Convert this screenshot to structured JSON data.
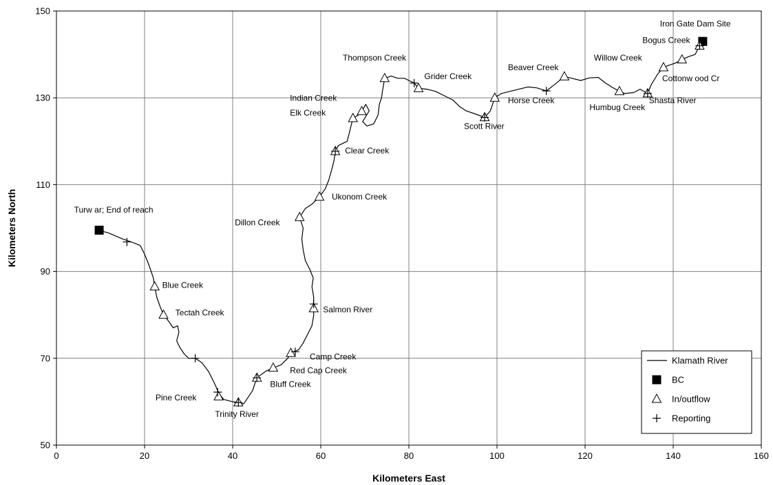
{
  "chart_data": {
    "type": "scatter",
    "title": "",
    "xlabel": "Kilometers East",
    "ylabel": "Kilometers North",
    "xlim": [
      0,
      160
    ],
    "ylim": [
      50,
      150
    ],
    "x_ticks": [
      0,
      20,
      40,
      60,
      80,
      100,
      120,
      140,
      160
    ],
    "y_ticks": [
      50,
      70,
      90,
      110,
      130,
      150
    ],
    "x_tick_labels": [
      "0",
      "20",
      "40",
      "60",
      "80",
      "100",
      "120",
      "140",
      "160"
    ],
    "y_tick_labels": [
      "50",
      "70",
      "90",
      "110",
      "130",
      "150"
    ],
    "grid": true,
    "legend_position": "bottom-right",
    "legend": [
      "Klamath River",
      "BC",
      "In/outflow",
      "Reporting"
    ],
    "colors": {
      "line": "#000000",
      "grid": "#7f7f7f",
      "markers": "#000000"
    },
    "series": [
      {
        "name": "Klamath River",
        "type": "line",
        "points": [
          [
            9.7,
            99.5
          ],
          [
            12,
            98.8
          ],
          [
            15,
            97.5
          ],
          [
            17,
            96.8
          ],
          [
            19,
            96
          ],
          [
            20,
            94
          ],
          [
            20.8,
            92
          ],
          [
            21.5,
            90
          ],
          [
            22,
            88.5
          ],
          [
            22.3,
            86.5
          ],
          [
            22.8,
            84
          ],
          [
            23.5,
            82
          ],
          [
            24.3,
            80
          ],
          [
            25.5,
            78.5
          ],
          [
            26.5,
            77
          ],
          [
            27.5,
            77.5
          ],
          [
            27.8,
            76
          ],
          [
            27.3,
            74
          ],
          [
            28,
            72.5
          ],
          [
            29,
            71
          ],
          [
            30,
            70
          ],
          [
            31.5,
            70
          ],
          [
            33,
            69
          ],
          [
            34.5,
            67
          ],
          [
            35.5,
            65
          ],
          [
            36.2,
            63.5
          ],
          [
            36.8,
            62
          ],
          [
            38,
            60.5
          ],
          [
            40,
            60
          ],
          [
            41.3,
            59.8
          ],
          [
            42.5,
            59.5
          ],
          [
            43.5,
            61
          ],
          [
            44.5,
            62.5
          ],
          [
            45.5,
            65.5
          ],
          [
            47.5,
            67
          ],
          [
            49.2,
            67.8
          ],
          [
            51,
            68.5
          ],
          [
            52.5,
            70
          ],
          [
            53.2,
            71.2
          ],
          [
            55,
            72
          ],
          [
            56,
            73.5
          ],
          [
            57,
            75.5
          ],
          [
            58,
            77.5
          ],
          [
            58.4,
            80
          ],
          [
            58.3,
            82
          ],
          [
            58.4,
            84
          ],
          [
            58,
            86.5
          ],
          [
            58.3,
            88.5
          ],
          [
            57.5,
            90.5
          ],
          [
            56.5,
            92.5
          ],
          [
            56,
            95
          ],
          [
            55.7,
            97.5
          ],
          [
            56,
            100
          ],
          [
            55.2,
            102.5
          ],
          [
            56.5,
            104.5
          ],
          [
            58,
            105.5
          ],
          [
            59.7,
            107.2
          ],
          [
            61,
            109
          ],
          [
            61.8,
            111
          ],
          [
            62.5,
            113.5
          ],
          [
            63,
            115.5
          ],
          [
            63.3,
            117.7
          ],
          [
            64,
            119
          ],
          [
            66,
            120
          ],
          [
            66.5,
            122
          ],
          [
            67.3,
            125.3
          ],
          [
            68.5,
            126
          ],
          [
            69.3,
            126.9
          ],
          [
            70.2,
            128.5
          ],
          [
            71,
            127
          ],
          [
            69.5,
            124.5
          ],
          [
            70.5,
            123.5
          ],
          [
            72,
            124
          ],
          [
            73,
            126
          ],
          [
            73.3,
            128.5
          ],
          [
            73.8,
            130
          ],
          [
            74,
            131.5
          ],
          [
            74.5,
            134.5
          ],
          [
            76,
            135
          ],
          [
            77.5,
            134.5
          ],
          [
            79,
            134.5
          ],
          [
            80,
            134
          ],
          [
            81.2,
            133.4
          ],
          [
            82.2,
            132.2
          ],
          [
            84,
            132
          ],
          [
            86,
            131.5
          ],
          [
            88,
            130.5
          ],
          [
            90,
            129.5
          ],
          [
            91.5,
            128
          ],
          [
            93,
            127
          ],
          [
            95,
            126.3
          ],
          [
            97.2,
            125.5
          ],
          [
            98.5,
            127
          ],
          [
            99.5,
            130
          ],
          [
            101,
            131
          ],
          [
            103,
            131.5
          ],
          [
            105,
            132
          ],
          [
            107,
            132.5
          ],
          [
            109,
            132.3
          ],
          [
            111.2,
            131.6
          ],
          [
            113,
            133
          ],
          [
            115.3,
            134.9
          ],
          [
            117,
            134.5
          ],
          [
            119,
            134
          ],
          [
            121,
            134.6
          ],
          [
            123,
            134.7
          ],
          [
            124.5,
            133.5
          ],
          [
            126,
            132.5
          ],
          [
            127.8,
            131.5
          ],
          [
            129,
            131
          ],
          [
            131,
            131.2
          ],
          [
            132.5,
            132
          ],
          [
            134.2,
            131
          ],
          [
            135,
            133
          ],
          [
            136.5,
            135.5
          ],
          [
            137.8,
            137
          ],
          [
            139,
            137.5
          ],
          [
            140.5,
            138
          ],
          [
            142,
            138.8
          ],
          [
            143.5,
            139.5
          ],
          [
            145,
            140
          ],
          [
            146,
            142
          ],
          [
            146.7,
            143
          ]
        ]
      },
      {
        "name": "BC",
        "type": "marker",
        "symbol": "square",
        "points": [
          [
            146.7,
            143
          ],
          [
            9.7,
            99.5
          ]
        ]
      },
      {
        "name": "In/outflow",
        "type": "marker",
        "symbol": "triangle",
        "points": [
          [
            146,
            142
          ],
          [
            142,
            138.8
          ],
          [
            137.8,
            137
          ],
          [
            134.2,
            131
          ],
          [
            127.8,
            131.5
          ],
          [
            115.3,
            134.9
          ],
          [
            99.5,
            130
          ],
          [
            97.2,
            125.5
          ],
          [
            82.2,
            132.2
          ],
          [
            74.5,
            134.5
          ],
          [
            69.3,
            126.9
          ],
          [
            67.3,
            125.3
          ],
          [
            63.3,
            117.7
          ],
          [
            59.7,
            107.2
          ],
          [
            55.2,
            102.5
          ],
          [
            58.4,
            81.5
          ],
          [
            53.2,
            71.2
          ],
          [
            49.2,
            67.8
          ],
          [
            45.5,
            65.5
          ],
          [
            41.3,
            59.8
          ],
          [
            36.8,
            61.2
          ],
          [
            24.3,
            80
          ],
          [
            22.3,
            86.5
          ]
        ]
      },
      {
        "name": "Reporting",
        "type": "marker",
        "symbol": "plus",
        "points": [
          [
            146,
            142
          ],
          [
            134.2,
            131
          ],
          [
            111.2,
            131.6
          ],
          [
            97.2,
            125.5
          ],
          [
            81.2,
            133.4
          ],
          [
            63.3,
            117.7
          ],
          [
            58.4,
            82.5
          ],
          [
            54.2,
            71.5
          ],
          [
            45.5,
            65.5
          ],
          [
            41.3,
            59.8
          ],
          [
            36.6,
            62.2
          ],
          [
            31.5,
            70
          ],
          [
            16,
            96.8
          ]
        ]
      }
    ],
    "annotations": [
      {
        "text": "Iron Gate Dam Site",
        "x": 137,
        "y": 146.4
      },
      {
        "text": "Bogus Creek",
        "x": 133,
        "y": 142.6
      },
      {
        "text": "Willow  Creek",
        "x": 122,
        "y": 138.6
      },
      {
        "text": "Cottonw ood Cr",
        "x": 137.5,
        "y": 133.8
      },
      {
        "text": "Shasta River",
        "x": 134.5,
        "y": 128.8
      },
      {
        "text": "Humbug Creek",
        "x": 121,
        "y": 127.2
      },
      {
        "text": "Beaver Creek",
        "x": 102.5,
        "y": 136.4
      },
      {
        "text": "Horse Creek",
        "x": 102.5,
        "y": 128.8
      },
      {
        "text": "Scott River",
        "x": 92.5,
        "y": 122.8
      },
      {
        "text": "Grider Creek",
        "x": 83.5,
        "y": 134.3
      },
      {
        "text": "Thompson Creek",
        "x": 65,
        "y": 138.6
      },
      {
        "text": "Indian Creek",
        "x": 53,
        "y": 129.3
      },
      {
        "text": "Elk Creek",
        "x": 53,
        "y": 125.9
      },
      {
        "text": "Clear Creek",
        "x": 65.5,
        "y": 117.2
      },
      {
        "text": "Ukonom Creek",
        "x": 62.5,
        "y": 106.6
      },
      {
        "text": "Dillon Creek",
        "x": 40.5,
        "y": 100.6
      },
      {
        "text": "Turw ar; End of reach",
        "x": 4,
        "y": 103.6
      },
      {
        "text": "Blue Creek",
        "x": 24,
        "y": 86.2
      },
      {
        "text": "Tectah Creek",
        "x": 27,
        "y": 79.9
      },
      {
        "text": "Salmon River",
        "x": 60.5,
        "y": 80.6
      },
      {
        "text": "Camp Creek",
        "x": 57.5,
        "y": 69.7
      },
      {
        "text": "Red Cap Creek",
        "x": 53,
        "y": 66.6
      },
      {
        "text": "Bluff Creek",
        "x": 48.5,
        "y": 63.4
      },
      {
        "text": "Pine Creek",
        "x": 22.5,
        "y": 60.3
      },
      {
        "text": "Trinity River",
        "x": 36,
        "y": 56.5
      }
    ]
  }
}
